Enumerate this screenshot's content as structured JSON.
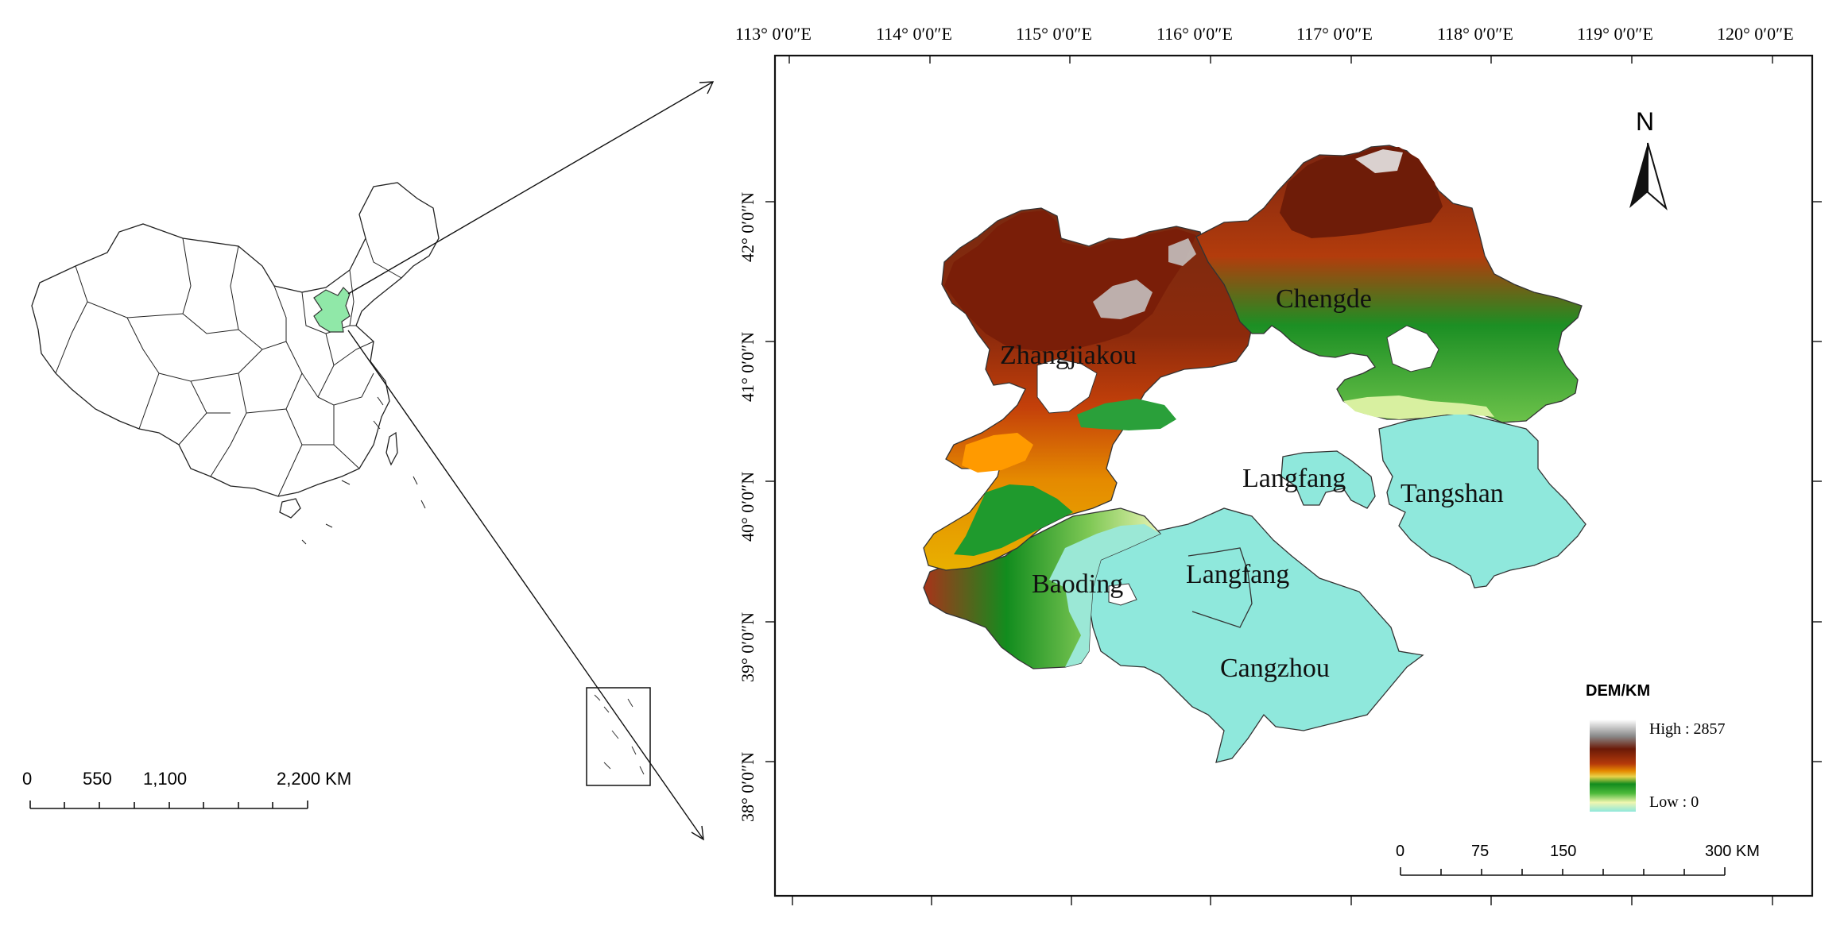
{
  "overview": {
    "scale_ticks": [
      "0",
      "550",
      "1,100",
      "2,200 KM"
    ]
  },
  "main_map": {
    "lon_labels": [
      "113° 0′0″E",
      "114° 0′0″E",
      "115° 0′0″E",
      "116° 0′0″E",
      "117° 0′0″E",
      "118° 0′0″E",
      "119° 0′0″E",
      "120° 0′0″E"
    ],
    "lat_labels": [
      "42° 0′0″N",
      "41° 0′0″N",
      "40° 0′0″N",
      "39° 0′0″N",
      "38° 0′0″N"
    ],
    "north_label": "N",
    "cities": [
      "Zhangjiakou",
      "Chengde",
      "Langfang",
      "Tangshan",
      "Baoding",
      "Langfang",
      "Cangzhou"
    ],
    "legend": {
      "title": "DEM/KM",
      "high_label": "High : 2857",
      "low_label": "Low : 0",
      "colors": [
        "#ffffff",
        "#9a9a9a",
        "#6b1a08",
        "#b53a0a",
        "#e58a00",
        "#e8d24a",
        "#128c1e",
        "#4cb93a",
        "#f0f6b0",
        "#8fe8dc"
      ]
    },
    "scale_ticks": [
      "0",
      "75",
      "150",
      "300 KM"
    ]
  }
}
